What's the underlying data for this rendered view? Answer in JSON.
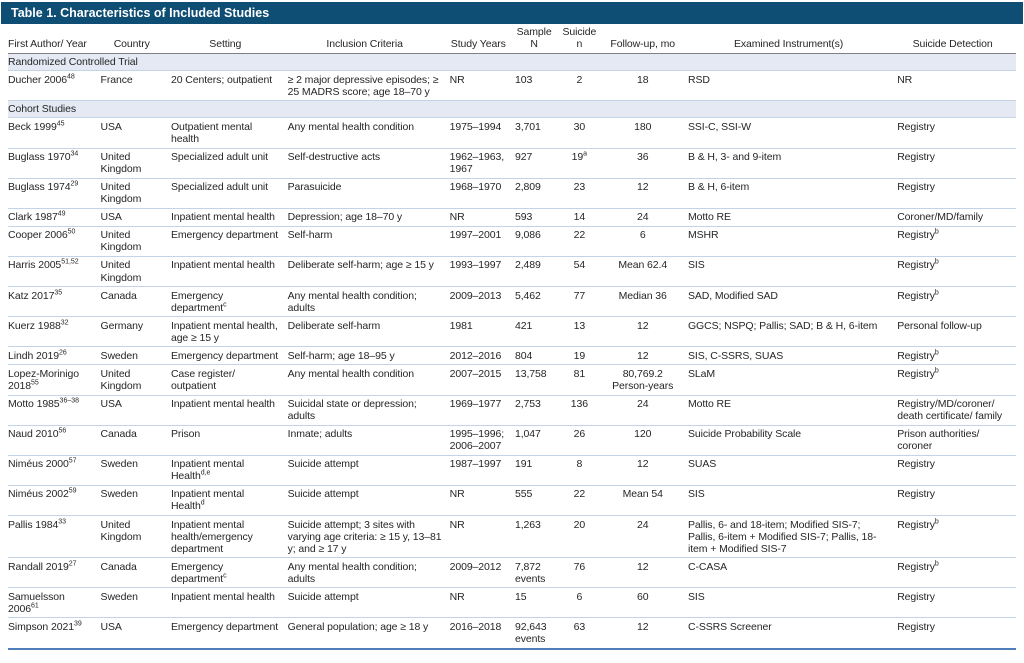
{
  "title": "Table 1. Characteristics of Included Studies",
  "colors": {
    "header_bar": "#0e4d74",
    "section_bg": "#e4e9f4",
    "row_separator": "#c5d3e7",
    "bottom_rule": "#4e7fba",
    "header_rule": "#7f7f7f"
  },
  "columns": [
    {
      "key": "author",
      "label": "First Author/ Year"
    },
    {
      "key": "country",
      "label": "Country"
    },
    {
      "key": "setting",
      "label": "Setting"
    },
    {
      "key": "inclusion",
      "label": "Inclusion Criteria"
    },
    {
      "key": "years",
      "label": "Study Years"
    },
    {
      "key": "sample",
      "label": "Sample N"
    },
    {
      "key": "suicide",
      "label": "Suicide n"
    },
    {
      "key": "followup",
      "label": "Follow-up, mo"
    },
    {
      "key": "instruments",
      "label": "Examined Instrument(s)"
    },
    {
      "key": "detection",
      "label": "Suicide Detection"
    }
  ],
  "sections": [
    {
      "label": "Randomized Controlled Trial",
      "rows": [
        {
          "author": [
            {
              "t": "Ducher 2006"
            },
            {
              "t": "48",
              "sup": true
            }
          ],
          "country": "France",
          "setting": "20 Centers; outpatient",
          "inclusion": "≥ 2 major depressive episodes; ≥ 25 MADRS score; age 18–70 y",
          "years": "NR",
          "sample": "103",
          "suicide": "2",
          "followup": "18",
          "instruments": "RSD",
          "detection": "NR"
        }
      ]
    },
    {
      "label": "Cohort Studies",
      "rows": [
        {
          "author": [
            {
              "t": "Beck 1999"
            },
            {
              "t": "45",
              "sup": true
            }
          ],
          "country": "USA",
          "setting": "Outpatient mental health",
          "inclusion": "Any mental health condition",
          "years": "1975–1994",
          "sample": "3,701",
          "suicide": "30",
          "followup": "180",
          "instruments": "SSI-C, SSI-W",
          "detection": "Registry"
        },
        {
          "author": [
            {
              "t": "Buglass 1970"
            },
            {
              "t": "34",
              "sup": true
            }
          ],
          "country": "United Kingdom",
          "setting": "Specialized adult unit",
          "inclusion": "Self-destructive acts",
          "years": "1962–1963, 1967",
          "sample": "927",
          "suicide": [
            {
              "t": "19"
            },
            {
              "t": "a",
              "sup": true
            }
          ],
          "followup": "36",
          "instruments": "B & H, 3- and 9-item",
          "detection": "Registry"
        },
        {
          "author": [
            {
              "t": "Buglass 1974"
            },
            {
              "t": "29",
              "sup": true
            }
          ],
          "country": "United Kingdom",
          "setting": "Specialized adult unit",
          "inclusion": "Parasuicide",
          "years": "1968–1970",
          "sample": "2,809",
          "suicide": "23",
          "followup": "12",
          "instruments": "B & H, 6-item",
          "detection": "Registry"
        },
        {
          "author": [
            {
              "t": "Clark 1987"
            },
            {
              "t": "49",
              "sup": true
            }
          ],
          "country": "USA",
          "setting": "Inpatient mental health",
          "inclusion": "Depression; age 18–70 y",
          "years": "NR",
          "sample": "593",
          "suicide": "14",
          "followup": "24",
          "instruments": "Motto RE",
          "detection": "Coroner/MD/family"
        },
        {
          "author": [
            {
              "t": "Cooper 2006"
            },
            {
              "t": "50",
              "sup": true
            }
          ],
          "country": "United Kingdom",
          "setting": "Emergency department",
          "inclusion": "Self-harm",
          "years": "1997–2001",
          "sample": "9,086",
          "suicide": "22",
          "followup": "6",
          "instruments": "MSHR",
          "detection": [
            {
              "t": "Registry"
            },
            {
              "t": "b",
              "sup": true
            }
          ]
        },
        {
          "author": [
            {
              "t": "Harris 2005"
            },
            {
              "t": "51,52",
              "sup": true
            }
          ],
          "country": "United Kingdom",
          "setting": "Inpatient mental health",
          "inclusion": "Deliberate self-harm; age ≥ 15 y",
          "years": "1993–1997",
          "sample": "2,489",
          "suicide": "54",
          "followup": "Mean 62.4",
          "instruments": "SIS",
          "detection": [
            {
              "t": "Registry"
            },
            {
              "t": "b",
              "sup": true
            }
          ]
        },
        {
          "author": [
            {
              "t": "Katz 2017"
            },
            {
              "t": "35",
              "sup": true
            }
          ],
          "country": "Canada",
          "setting": [
            {
              "t": "Emergency department"
            },
            {
              "t": "c",
              "sup": true
            }
          ],
          "inclusion": "Any mental health condition; adults",
          "years": "2009–2013",
          "sample": "5,462",
          "suicide": "77",
          "followup": "Median 36",
          "instruments": "SAD, Modified SAD",
          "detection": [
            {
              "t": "Registry"
            },
            {
              "t": "b",
              "sup": true
            }
          ]
        },
        {
          "author": [
            {
              "t": "Kuerz 1988"
            },
            {
              "t": "32",
              "sup": true
            }
          ],
          "country": "Germany",
          "setting": "Inpatient mental health, age ≥ 15 y",
          "inclusion": "Deliberate self-harm",
          "years": "1981",
          "sample": "421",
          "suicide": "13",
          "followup": "12",
          "instruments": "GGCS; NSPQ; Pallis; SAD; B & H, 6-item",
          "detection": "Personal follow-up"
        },
        {
          "author": [
            {
              "t": "Lindh 2019"
            },
            {
              "t": "26",
              "sup": true
            }
          ],
          "country": "Sweden",
          "setting": "Emergency department",
          "inclusion": "Self-harm; age 18–95 y",
          "years": "2012–2016",
          "sample": "804",
          "suicide": "19",
          "followup": "12",
          "instruments": "SIS, C-SSRS, SUAS",
          "detection": [
            {
              "t": "Registry"
            },
            {
              "t": "b",
              "sup": true
            }
          ]
        },
        {
          "author": [
            {
              "t": "Lopez-Morinigo 2018"
            },
            {
              "t": "55",
              "sup": true
            }
          ],
          "country": "United Kingdom",
          "setting": "Case register/ outpatient",
          "inclusion": "Any mental health condition",
          "years": "2007–2015",
          "sample": "13,758",
          "suicide": "81",
          "followup": "80,769.2 Person-years",
          "instruments": "SLaM",
          "detection": [
            {
              "t": "Registry"
            },
            {
              "t": "b",
              "sup": true
            }
          ]
        },
        {
          "author": [
            {
              "t": "Motto 1985"
            },
            {
              "t": "36–38",
              "sup": true
            }
          ],
          "country": "USA",
          "setting": "Inpatient mental health",
          "inclusion": "Suicidal state or depression; adults",
          "years": "1969–1977",
          "sample": "2,753",
          "suicide": "136",
          "followup": "24",
          "instruments": "Motto RE",
          "detection": "Registry/MD/coroner/ death certificate/ family"
        },
        {
          "author": [
            {
              "t": "Naud 2010"
            },
            {
              "t": "56",
              "sup": true
            }
          ],
          "country": "Canada",
          "setting": "Prison",
          "inclusion": "Inmate; adults",
          "years": "1995–1996; 2006–2007",
          "sample": "1,047",
          "suicide": "26",
          "followup": "120",
          "instruments": "Suicide Probability Scale",
          "detection": "Prison authorities/ coroner"
        },
        {
          "author": [
            {
              "t": "Niméus 2000"
            },
            {
              "t": "57",
              "sup": true
            }
          ],
          "country": "Sweden",
          "setting": [
            {
              "t": "Inpatient mental Health"
            },
            {
              "t": "d,e",
              "sup": true
            }
          ],
          "inclusion": "Suicide attempt",
          "years": "1987–1997",
          "sample": "191",
          "suicide": "8",
          "followup": "12",
          "instruments": "SUAS",
          "detection": "Registry"
        },
        {
          "author": [
            {
              "t": "Niméus 2002"
            },
            {
              "t": "59",
              "sup": true
            }
          ],
          "country": "Sweden",
          "setting": [
            {
              "t": "Inpatient mental Health"
            },
            {
              "t": "d",
              "sup": true
            }
          ],
          "inclusion": "Suicide attempt",
          "years": "NR",
          "sample": "555",
          "suicide": "22",
          "followup": "Mean 54",
          "instruments": "SIS",
          "detection": "Registry"
        },
        {
          "author": [
            {
              "t": "Pallis 1984"
            },
            {
              "t": "33",
              "sup": true
            }
          ],
          "country": "United Kingdom",
          "setting": "Inpatient mental health/emergency department",
          "inclusion": "Suicide attempt; 3 sites with varying age criteria: ≥ 15 y, 13–81 y; and ≥ 17 y",
          "years": "NR",
          "sample": "1,263",
          "suicide": "20",
          "followup": "24",
          "instruments": "Pallis, 6- and 18-item; Modified SIS-7; Pallis, 6-item + Modified SIS-7; Pallis, 18-item + Modified SIS-7",
          "detection": [
            {
              "t": "Registry"
            },
            {
              "t": "b",
              "sup": true
            }
          ]
        },
        {
          "author": [
            {
              "t": "Randall 2019"
            },
            {
              "t": "27",
              "sup": true
            }
          ],
          "country": "Canada",
          "setting": [
            {
              "t": "Emergency department"
            },
            {
              "t": "c",
              "sup": true
            }
          ],
          "inclusion": "Any mental health condition; adults",
          "years": "2009–2012",
          "sample": "7,872 events",
          "suicide": "76",
          "followup": "12",
          "instruments": "C-CASA",
          "detection": [
            {
              "t": "Registry"
            },
            {
              "t": "b",
              "sup": true
            }
          ]
        },
        {
          "author": [
            {
              "t": "Samuelsson 2006"
            },
            {
              "t": "61",
              "sup": true
            }
          ],
          "country": "Sweden",
          "setting": "Inpatient mental health",
          "inclusion": "Suicide attempt",
          "years": "NR",
          "sample": "15",
          "suicide": "6",
          "followup": "60",
          "instruments": "SIS",
          "detection": "Registry"
        },
        {
          "author": [
            {
              "t": "Simpson 2021"
            },
            {
              "t": "39",
              "sup": true
            }
          ],
          "country": "USA",
          "setting": "Emergency department",
          "inclusion": "General population; age ≥ 18 y",
          "years": "2016–2018",
          "sample": "92,643 events",
          "suicide": "63",
          "followup": "12",
          "instruments": "C-SSRS Screener",
          "detection": "Registry"
        }
      ]
    }
  ]
}
